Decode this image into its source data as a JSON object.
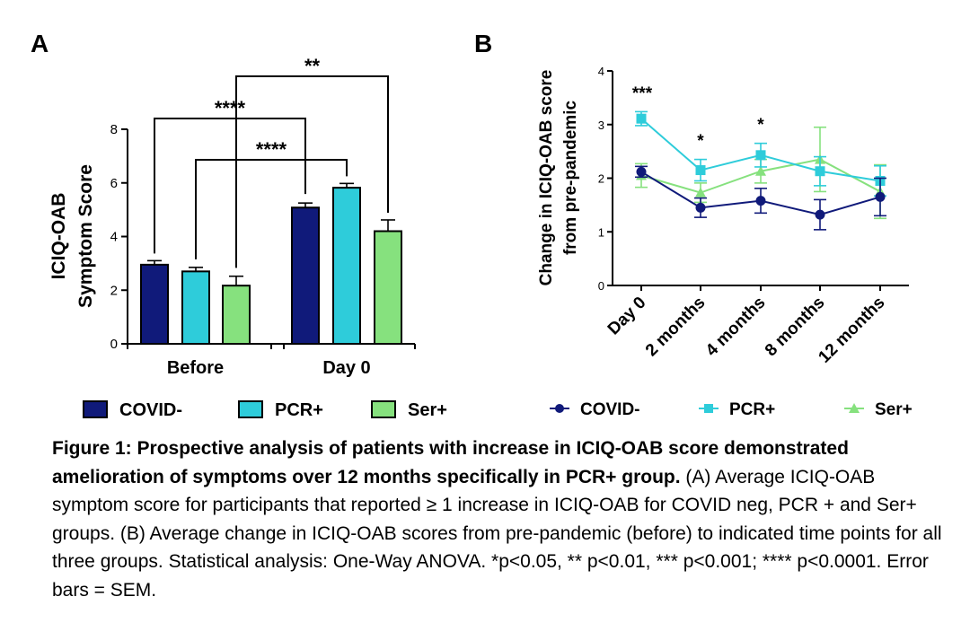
{
  "chart_data": [
    {
      "panel": "A",
      "type": "bar",
      "categories": [
        "Before",
        "Day 0"
      ],
      "ylabel_line1": "ICIQ-OAB",
      "ylabel_line2": "Symptom  Score",
      "ylim": [
        0,
        8
      ],
      "yticks": [
        "0",
        "2",
        "4",
        "6",
        "8"
      ],
      "series": [
        {
          "name": "COVID-",
          "color": "#101A7A",
          "values": [
            2.95,
            5.08
          ],
          "errors": [
            0.15,
            0.17
          ]
        },
        {
          "name": "PCR+",
          "color": "#2ECCDA",
          "values": [
            2.7,
            5.82
          ],
          "errors": [
            0.15,
            0.16
          ]
        },
        {
          "name": "Ser+",
          "color": "#86E17E",
          "values": [
            2.17,
            4.2
          ],
          "errors": [
            0.35,
            0.42
          ]
        }
      ],
      "significance": [
        {
          "label": "****",
          "from_series": "COVID-",
          "from_category": "Before",
          "to_series": "COVID-",
          "to_category": "Day 0"
        },
        {
          "label": "****",
          "from_series": "PCR+",
          "from_category": "Before",
          "to_series": "PCR+",
          "to_category": "Day 0"
        },
        {
          "label": "**",
          "from_series": "Ser+",
          "from_category": "Before",
          "to_series": "Ser+",
          "to_category": "Day 0"
        }
      ],
      "legend_placement": "bottom"
    },
    {
      "panel": "B",
      "type": "line",
      "categories": [
        "Day 0",
        "2 months",
        "4 months",
        "8 months",
        "12 months"
      ],
      "ylabel_line1": "Change in ICIQ-OAB score",
      "ylabel_line2": "from pre-pandemic",
      "ylim": [
        0,
        4
      ],
      "yticks": [
        "0",
        "1",
        "2",
        "3",
        "4"
      ],
      "series": [
        {
          "name": "COVID-",
          "color": "#101A7A",
          "marker": "circle",
          "values": [
            2.12,
            1.45,
            1.58,
            1.32,
            1.65
          ],
          "errors": [
            0.1,
            0.18,
            0.23,
            0.28,
            0.35
          ]
        },
        {
          "name": "PCR+",
          "color": "#2ECCDA",
          "marker": "square",
          "values": [
            3.11,
            2.15,
            2.43,
            2.13,
            1.95
          ],
          "errors": [
            0.13,
            0.2,
            0.22,
            0.27,
            0.28
          ]
        },
        {
          "name": "Ser+",
          "color": "#86E17E",
          "marker": "triangle",
          "values": [
            2.05,
            1.73,
            2.13,
            2.35,
            1.75
          ],
          "errors": [
            0.22,
            0.18,
            0.22,
            0.6,
            0.5
          ]
        }
      ],
      "annotations": [
        {
          "label": "***",
          "category": "Day 0"
        },
        {
          "label": "*",
          "category": "2 months"
        },
        {
          "label": "*",
          "category": "4 months"
        }
      ],
      "legend_placement": "bottom"
    }
  ],
  "panel_labels": {
    "a": "A",
    "b": "B"
  },
  "caption": {
    "title": "Figure 1: Prospective analysis of patients with increase in ICIQ-OAB score demonstrated amelioration of symptoms over 12 months specifically in PCR+ group.",
    "body": " (A) Average ICIQ-OAB symptom score for participants that reported  ≥ 1 increase in ICIQ-OAB for COVID neg, PCR + and Ser+ groups. (B) Average change in ICIQ-OAB scores from pre-pandemic (before) to indicated time points for all three groups. Statistical analysis: One-Way ANOVA. *p<0.05, ** p<0.01, *** p<0.001; **** p<0.0001. Error bars = SEM."
  }
}
